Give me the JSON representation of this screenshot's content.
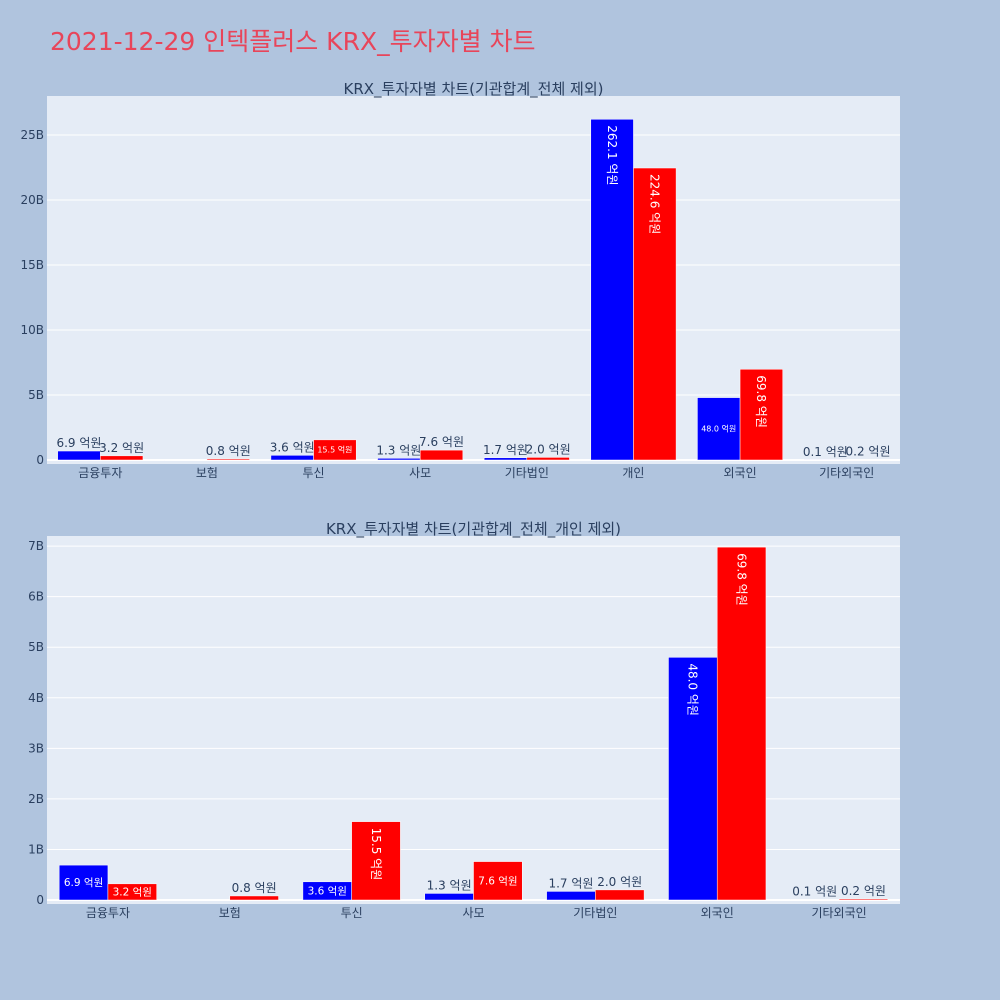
{
  "page": {
    "title": "2021-12-29 인텍플러스 KRX_투자자별 차트"
  },
  "colors": {
    "background": "#b0c4de",
    "plot_bg": "#e5ecf6",
    "series_a": "#0000ff",
    "series_b": "#ff0000",
    "title": "#e8455a",
    "axis_text": "#2a3f5f"
  },
  "chart_data": [
    {
      "type": "bar",
      "title": "KRX_투자자별 차트(기관합계_전체 제외)",
      "categories": [
        "금융투자",
        "보험",
        "투신",
        "사모",
        "기타법인",
        "개인",
        "외국인",
        "기타외국인"
      ],
      "ylim": [
        0,
        28
      ],
      "yticks": [
        0,
        5,
        10,
        15,
        20,
        25
      ],
      "ytick_labels": [
        "0",
        "5B",
        "10B",
        "15B",
        "20B",
        "25B"
      ],
      "grid": true,
      "series": [
        {
          "values": [
            0.69,
            0,
            0.36,
            0.13,
            0.17,
            26.21,
            4.8,
            0.01
          ],
          "labels": [
            "6.9 억원",
            "",
            "3.6 억원",
            "1.3 억원",
            "1.7 억원",
            "262.1 억원",
            "48.0 억원",
            "0.1 억원"
          ]
        },
        {
          "values": [
            0.32,
            0.08,
            1.55,
            0.76,
            0.2,
            22.46,
            6.98,
            0.02
          ],
          "labels": [
            "3.2 억원",
            "0.8 억원",
            "15.5 억원",
            "7.6 억원",
            "2.0 억원",
            "224.6 억원",
            "69.8 억원",
            "0.2 억원"
          ]
        }
      ]
    },
    {
      "type": "bar",
      "title": "KRX_투자자별 차트(기관합계_전체_개인 제외)",
      "categories": [
        "금융투자",
        "보험",
        "투신",
        "사모",
        "기타법인",
        "외국인",
        "기타외국인"
      ],
      "ylim": [
        0,
        7.2
      ],
      "yticks": [
        0,
        1,
        2,
        3,
        4,
        5,
        6,
        7
      ],
      "ytick_labels": [
        "0",
        "1B",
        "2B",
        "3B",
        "4B",
        "5B",
        "6B",
        "7B"
      ],
      "grid": true,
      "series": [
        {
          "values": [
            0.69,
            0,
            0.36,
            0.13,
            0.17,
            4.8,
            0.01
          ],
          "labels": [
            "6.9 억원",
            "",
            "3.6 억원",
            "1.3 억원",
            "1.7 억원",
            "48.0 억원",
            "0.1 억원"
          ]
        },
        {
          "values": [
            0.32,
            0.08,
            1.55,
            0.76,
            0.2,
            6.98,
            0.02
          ],
          "labels": [
            "3.2 억원",
            "0.8 억원",
            "15.5 억원",
            "7.6 억원",
            "2.0 억원",
            "69.8 억원",
            "0.2 억원"
          ]
        }
      ]
    }
  ]
}
